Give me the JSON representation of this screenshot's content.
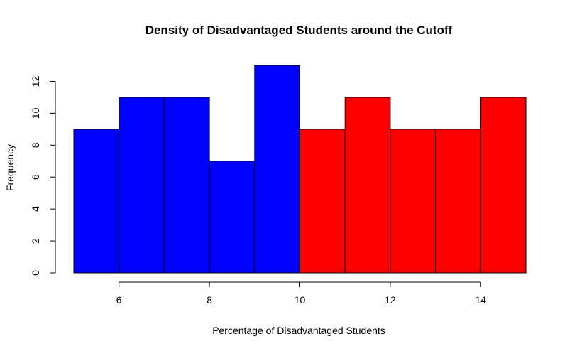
{
  "chart_data": {
    "type": "bar",
    "title": "Density of Disadvantaged Students around the Cutoff",
    "xlabel": "Percentage of Disadvantaged Students",
    "ylabel": "Frequency",
    "xlim": [
      5,
      15
    ],
    "ylim": [
      0,
      13
    ],
    "x_ticks": [
      6,
      8,
      10,
      12,
      14
    ],
    "y_ticks": [
      0,
      2,
      4,
      6,
      8,
      10,
      12
    ],
    "grid": false,
    "bins": [
      {
        "start": 5,
        "end": 6,
        "value": 9,
        "color": "#0000FF"
      },
      {
        "start": 6,
        "end": 7,
        "value": 11,
        "color": "#0000FF"
      },
      {
        "start": 7,
        "end": 8,
        "value": 11,
        "color": "#0000FF"
      },
      {
        "start": 8,
        "end": 9,
        "value": 7,
        "color": "#0000FF"
      },
      {
        "start": 9,
        "end": 10,
        "value": 13,
        "color": "#0000FF"
      },
      {
        "start": 10,
        "end": 11,
        "value": 9,
        "color": "#FF0000"
      },
      {
        "start": 11,
        "end": 12,
        "value": 11,
        "color": "#FF0000"
      },
      {
        "start": 12,
        "end": 13,
        "value": 9,
        "color": "#FF0000"
      },
      {
        "start": 13,
        "end": 14,
        "value": 9,
        "color": "#FF0000"
      },
      {
        "start": 14,
        "end": 15,
        "value": 11,
        "color": "#FF0000"
      }
    ]
  }
}
